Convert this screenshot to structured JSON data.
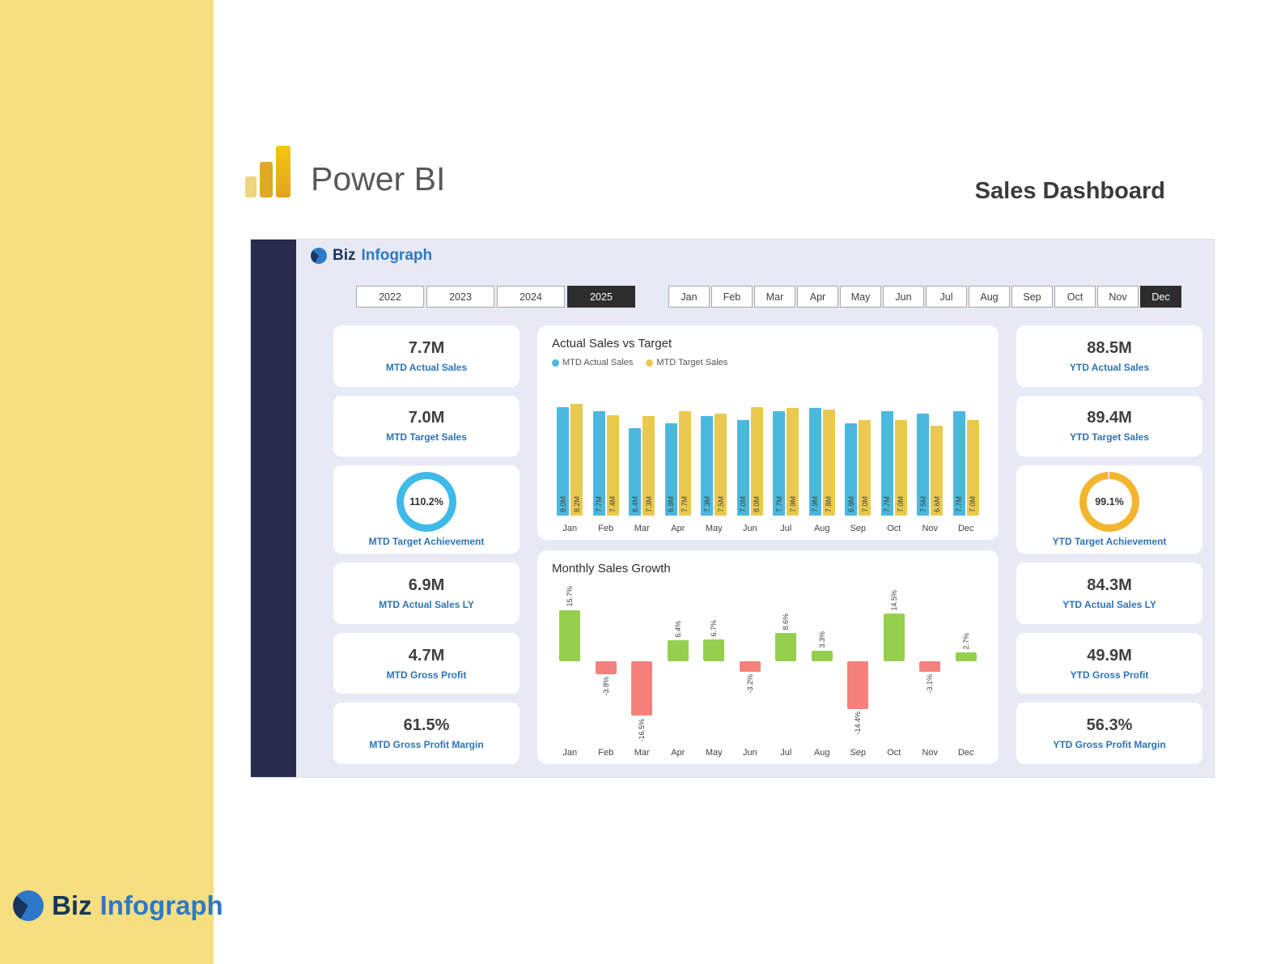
{
  "header": {
    "app_title": "Power BI",
    "page_title": "Sales Dashboard"
  },
  "brand": {
    "biz": "Biz",
    "infograph": "Infograph"
  },
  "filters": {
    "years": [
      "2022",
      "2023",
      "2024",
      "2025"
    ],
    "selected_year": "2025",
    "months": [
      "Jan",
      "Feb",
      "Mar",
      "Apr",
      "May",
      "Jun",
      "Jul",
      "Aug",
      "Sep",
      "Oct",
      "Nov",
      "Dec"
    ],
    "selected_month": "Dec"
  },
  "kpi_left": [
    {
      "value": "7.7M",
      "label": "MTD Actual Sales"
    },
    {
      "value": "7.0M",
      "label": "MTD Target Sales"
    },
    {
      "value": "110.2%",
      "label": "MTD Target Achievement",
      "donut": true,
      "donut_pct": 110.2,
      "donut_color": "#3FB9E8"
    },
    {
      "value": "6.9M",
      "label": "MTD Actual Sales LY"
    },
    {
      "value": "4.7M",
      "label": "MTD Gross Profit"
    },
    {
      "value": "61.5%",
      "label": "MTD Gross Profit Margin"
    }
  ],
  "kpi_right": [
    {
      "value": "88.5M",
      "label": "YTD Actual Sales"
    },
    {
      "value": "89.4M",
      "label": "YTD Target Sales"
    },
    {
      "value": "99.1%",
      "label": "YTD Target Achievement",
      "donut": true,
      "donut_pct": 99.1,
      "donut_color": "#F2B62E"
    },
    {
      "value": "84.3M",
      "label": "YTD Actual Sales LY"
    },
    {
      "value": "49.9M",
      "label": "YTD Gross Profit"
    },
    {
      "value": "56.3%",
      "label": "YTD Gross Profit Margin"
    }
  ],
  "chart_data": [
    {
      "type": "bar",
      "title": "Actual Sales vs Target",
      "categories": [
        "Jan",
        "Feb",
        "Mar",
        "Apr",
        "May",
        "Jun",
        "Jul",
        "Aug",
        "Sep",
        "Oct",
        "Nov",
        "Dec"
      ],
      "series": [
        {
          "name": "MTD Actual Sales",
          "color": "#4BB8E0",
          "values": [
            8.0,
            7.7,
            6.4,
            6.8,
            7.3,
            7.0,
            7.7,
            7.9,
            6.8,
            7.7,
            7.5,
            7.7
          ]
        },
        {
          "name": "MTD Target Sales",
          "color": "#E9C94F",
          "values": [
            8.2,
            7.4,
            7.3,
            7.7,
            7.5,
            8.0,
            7.9,
            7.8,
            7.0,
            7.0,
            6.6,
            7.0
          ]
        }
      ],
      "value_suffix": "M",
      "ylim": [
        0,
        9
      ],
      "legend_position": "top",
      "grid": false
    },
    {
      "type": "bar",
      "title": "Monthly Sales Growth",
      "categories": [
        "Jan",
        "Feb",
        "Mar",
        "Apr",
        "May",
        "Jun",
        "Jul",
        "Aug",
        "Sep",
        "Oct",
        "Nov",
        "Dec"
      ],
      "values": [
        15.7,
        -3.8,
        -16.5,
        6.4,
        6.7,
        -3.2,
        8.6,
        3.3,
        -14.4,
        14.5,
        -3.1,
        2.7
      ],
      "value_suffix": "%",
      "positive_color": "#96CF4E",
      "negative_color": "#F5817B",
      "grid": false
    }
  ],
  "colors": {
    "side_band": "#F5DF80",
    "dashboard_bg": "#E7EAF4",
    "navy_strip": "#272B4E",
    "selected_filter_bg": "#2D2D2D",
    "kpi_label": "#2E74B5"
  }
}
